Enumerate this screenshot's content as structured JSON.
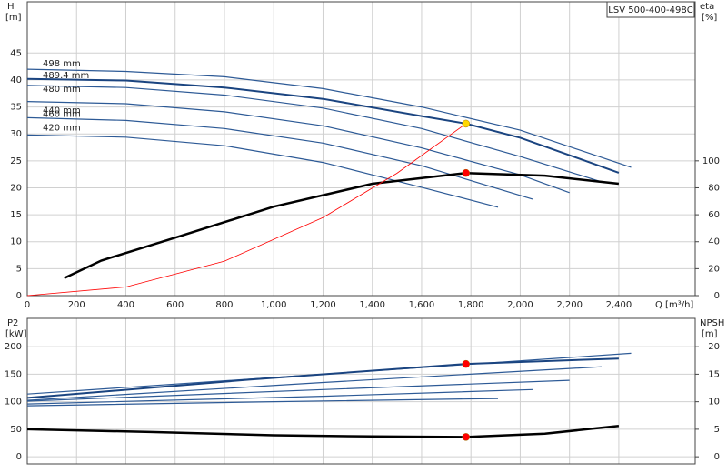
{
  "chart_data": [
    {
      "type": "line",
      "title": "LSV 500-400-498C",
      "y_label": "H",
      "y_unit": "[m]",
      "y2_label": "eta",
      "y2_unit": "[%]",
      "x_label": "Q [m³/h]",
      "xlim": [
        0,
        2710
      ],
      "xticks": [
        0,
        200,
        400,
        600,
        800,
        {
          "value": 1000,
          "label": "1,000"
        },
        {
          "value": 1200,
          "label": "1,200"
        },
        {
          "value": 1400,
          "label": "1,400"
        },
        {
          "value": 1600,
          "label": "1,600"
        },
        {
          "value": 1800,
          "label": "1,800"
        },
        {
          "value": 2000,
          "label": "2,000"
        },
        {
          "value": 2200,
          "label": "2,200"
        },
        {
          "value": 2400,
          "label": "2,400"
        }
      ],
      "ylim": [
        0,
        54.5
      ],
      "yticks": [
        0,
        5,
        10,
        15,
        20,
        25,
        30,
        35,
        40,
        45
      ],
      "y2lim": [
        0,
        218
      ],
      "y2ticks": [
        0,
        20,
        40,
        60,
        80,
        100
      ],
      "grid": true,
      "series": [
        {
          "name": "498 mm",
          "color": "#2d5a96",
          "x": [
            0,
            400,
            800,
            1200,
            1600,
            2000,
            2450
          ],
          "values": [
            42.0,
            41.6,
            40.6,
            38.4,
            35.0,
            30.7,
            23.8
          ]
        },
        {
          "name": "489.4 mm",
          "color": "#1a4480",
          "width": 2,
          "x": [
            0,
            400,
            800,
            1200,
            1600,
            1780,
            2000,
            2400
          ],
          "values": [
            40.2,
            39.9,
            38.6,
            36.5,
            33.3,
            31.9,
            29.3,
            22.8
          ]
        },
        {
          "name": "480 mm",
          "color": "#2d5a96",
          "x": [
            0,
            400,
            800,
            1200,
            1600,
            2000,
            2330
          ],
          "values": [
            39.0,
            38.6,
            37.2,
            34.8,
            31.0,
            25.8,
            21.1
          ]
        },
        {
          "name": "460 mm",
          "color": "#2d5a96",
          "x": [
            0,
            400,
            800,
            1200,
            1600,
            2000,
            2200
          ],
          "values": [
            36.0,
            35.6,
            34.1,
            31.5,
            27.4,
            22.4,
            19.1
          ]
        },
        {
          "name": "440 mm",
          "color": "#2d5a96",
          "x": [
            0,
            400,
            800,
            1200,
            1600,
            2050
          ],
          "values": [
            33.0,
            32.5,
            31.0,
            28.3,
            24.1,
            17.9
          ]
        },
        {
          "name": "420 mm",
          "color": "#2d5a96",
          "x": [
            0,
            400,
            800,
            1200,
            1600,
            1910
          ],
          "values": [
            29.8,
            29.4,
            27.8,
            24.7,
            20.1,
            16.4
          ]
        },
        {
          "color": "#000000",
          "width": 2.5,
          "axis": "y2",
          "x": [
            150,
            300,
            600,
            1000,
            1400,
            1780,
            2100,
            2400
          ],
          "values": [
            13,
            26,
            43,
            66,
            83,
            91,
            89,
            83
          ]
        },
        {
          "color": "#ff0000",
          "width": 0.8,
          "x": [
            0,
            400,
            800,
            1200,
            1500,
            1780
          ],
          "values": [
            0,
            1.6,
            6.4,
            14.5,
            22.7,
            31.9
          ]
        }
      ],
      "markers": [
        {
          "x": 1780,
          "value": 31.9,
          "color": "#ffd700"
        },
        {
          "x": 1780,
          "value": 91,
          "color": "#ff0000",
          "axis": "y2"
        }
      ]
    },
    {
      "type": "line",
      "y_label": "P2",
      "y_unit": "[kW]",
      "y2_label": "NPSH",
      "y2_unit": "[m]",
      "ylim": [
        -13,
        251.5
      ],
      "yticks": [
        0,
        50,
        100,
        150,
        200
      ],
      "y2lim": [
        -1.3,
        25.15
      ],
      "y2ticks": [
        0,
        5,
        10,
        15,
        20
      ],
      "grid": true,
      "series": [
        {
          "color": "#2d5a96",
          "x": [
            0,
            1200,
            2450
          ],
          "values": [
            114,
            150,
            188
          ]
        },
        {
          "color": "#1a4480",
          "width": 2,
          "x": [
            0,
            900,
            1780,
            2400
          ],
          "values": [
            107,
            140,
            168.6,
            178.5
          ]
        },
        {
          "color": "#2d5a96",
          "x": [
            0,
            1200,
            2330
          ],
          "values": [
            102.5,
            135,
            163.6
          ]
        },
        {
          "color": "#2d5a96",
          "x": [
            0,
            1200,
            2200
          ],
          "values": [
            101,
            122,
            139
          ]
        },
        {
          "color": "#2d5a96",
          "x": [
            0,
            1200,
            2050
          ],
          "values": [
            96,
            110,
            122
          ]
        },
        {
          "color": "#2d5a96",
          "x": [
            0,
            1000,
            1910
          ],
          "values": [
            92.6,
            100,
            105.8
          ]
        },
        {
          "color": "#000000",
          "width": 2.5,
          "axis": "y2",
          "x": [
            0,
            500,
            1000,
            1400,
            1780,
            2100,
            2400
          ],
          "values": [
            5.0,
            4.5,
            3.9,
            3.7,
            3.6,
            4.2,
            5.6
          ]
        }
      ],
      "markers": [
        {
          "x": 1780,
          "value": 168.6,
          "color": "#ff0000"
        },
        {
          "x": 1780,
          "value": 3.6,
          "color": "#ff0000",
          "axis": "y2"
        }
      ]
    }
  ]
}
